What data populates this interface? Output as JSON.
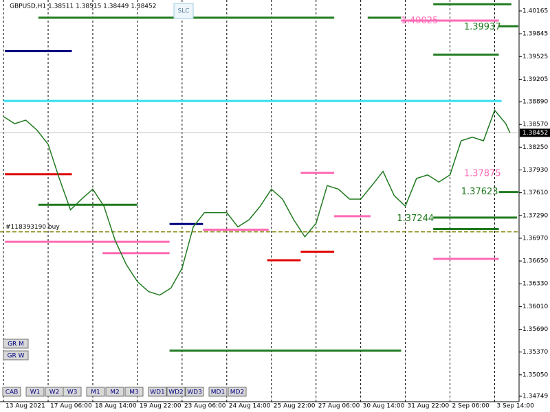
{
  "chart_data": {
    "type": "line",
    "title": "GBPUSD,H1  1.38511 1.38515 1.38449 1.38452",
    "xlim": [
      -2.5,
      369.5
    ],
    "ylim": [
      1.34672,
      1.40319
    ],
    "yticks": [
      1.40165,
      1.39845,
      1.39525,
      1.39205,
      {
        "value": 1.3889,
        "label": "1.38890"
      },
      {
        "value": 1.3857,
        "label": "1.38570"
      },
      {
        "value": 1.3825,
        "label": "1.38250"
      },
      {
        "value": 1.3793,
        "label": "1.37930"
      },
      {
        "value": 1.3761,
        "label": "1.37610"
      },
      {
        "value": 1.3729,
        "label": "1.37290"
      },
      {
        "value": 1.3697,
        "label": "1.36970"
      },
      {
        "value": 1.3665,
        "label": "1.36650"
      },
      {
        "value": 1.3633,
        "label": "1.36330"
      },
      {
        "value": 1.3601,
        "label": "1.36010"
      },
      {
        "value": 1.3569,
        "label": "1.35690"
      },
      {
        "value": 1.3537,
        "label": "1.35370"
      },
      {
        "value": 1.3505,
        "label": "1.35050"
      },
      1.34749
    ],
    "xticks": [
      {
        "value": 0,
        "label": "13 Aug 2021"
      },
      {
        "value": 32,
        "label": "17 Aug 06:00"
      },
      {
        "value": 64,
        "label": "18 Aug 14:00"
      },
      {
        "value": 96,
        "label": "19 Aug 22:00"
      },
      {
        "value": 128,
        "label": "23 Aug 06:00"
      },
      {
        "value": 160,
        "label": "24 Aug 14:00"
      },
      {
        "value": 192,
        "label": "25 Aug 22:00"
      },
      {
        "value": 224,
        "label": "27 Aug 06:00"
      },
      {
        "value": 256,
        "label": "30 Aug 14:00"
      },
      {
        "value": 288,
        "label": "31 Aug 22:00"
      },
      {
        "value": 320,
        "label": "2 Sep 06:00"
      },
      {
        "value": 352,
        "label": "3 Sep 14:00"
      }
    ],
    "grid": true,
    "series": [
      {
        "name": "GBPUSD",
        "color": "#1f7a1f",
        "x": [
          0,
          8,
          16,
          24,
          32,
          40,
          48,
          56,
          64,
          72,
          80,
          88,
          96,
          104,
          112,
          120,
          128,
          136,
          144,
          152,
          160,
          168,
          176,
          184,
          192,
          200,
          208,
          216,
          224,
          232,
          240,
          248,
          256,
          264,
          272,
          280,
          288,
          296,
          304,
          312,
          320,
          328,
          336,
          344,
          352,
          360,
          363
        ],
        "values": [
          1.3868,
          1.3858,
          1.3863,
          1.3849,
          1.3829,
          1.3781,
          1.3737,
          1.3752,
          1.3766,
          1.3742,
          1.3694,
          1.366,
          1.3636,
          1.3622,
          1.3617,
          1.3627,
          1.3655,
          1.3713,
          1.3733,
          1.3733,
          1.3733,
          1.3713,
          1.3723,
          1.3742,
          1.3766,
          1.3752,
          1.3723,
          1.3699,
          1.3718,
          1.3771,
          1.3766,
          1.3752,
          1.3752,
          1.3771,
          1.3791,
          1.3757,
          1.3742,
          1.3781,
          1.3786,
          1.3776,
          1.3786,
          1.3834,
          1.3839,
          1.3834,
          1.3877,
          1.3858,
          1.38452
        ]
      }
    ],
    "current_price": 1.38452,
    "levels": [
      {
        "price": 1.4026,
        "from": 308,
        "to": 364,
        "color": "#1f7a1f"
      },
      {
        "price": 1.4007,
        "from": 25,
        "to": 237,
        "color": "#1f7a1f"
      },
      {
        "price": 1.4007,
        "from": 261,
        "to": 285,
        "color": "#1f7a1f"
      },
      {
        "price": 1.4003,
        "from": 285,
        "to": 355,
        "color": "#ff69b4"
      },
      {
        "price": 1.3995,
        "from": 355,
        "to": 369,
        "color": "#1f7a1f"
      },
      {
        "price": 1.396,
        "from": 1,
        "to": 49,
        "color": "#00007f"
      },
      {
        "price": 1.3955,
        "from": 308,
        "to": 355,
        "color": "#1f7a1f"
      },
      {
        "price": 1.389,
        "from": 0,
        "to": 357,
        "color": "#33e0f0"
      },
      {
        "price": 1.3787,
        "from": 1,
        "to": 49,
        "color": "#e00000"
      },
      {
        "price": 1.3789,
        "from": 213,
        "to": 237,
        "color": "#ff69b4"
      },
      {
        "price": 1.3744,
        "from": 25,
        "to": 96,
        "color": "#1f7a1f"
      },
      {
        "price": 1.3762,
        "from": 355,
        "to": 369,
        "color": "#1f7a1f"
      },
      {
        "price": 1.3728,
        "from": 237,
        "to": 263,
        "color": "#ff69b4"
      },
      {
        "price": 1.3726,
        "from": 308,
        "to": 368,
        "color": "#1f7a1f"
      },
      {
        "price": 1.3717,
        "from": 119,
        "to": 143,
        "color": "#00007f"
      },
      {
        "price": 1.3709,
        "from": 143,
        "to": 190,
        "color": "#ff69b4"
      },
      {
        "price": 1.371,
        "from": 308,
        "to": 355,
        "color": "#1f7a1f"
      },
      {
        "price": 1.3692,
        "from": 1,
        "to": 119,
        "color": "#ff69b4"
      },
      {
        "price": 1.3676,
        "from": 71,
        "to": 119,
        "color": "#ff69b4"
      },
      {
        "price": 1.3678,
        "from": 213,
        "to": 237,
        "color": "#e00000"
      },
      {
        "price": 1.3668,
        "from": 308,
        "to": 355,
        "color": "#ff69b4"
      },
      {
        "price": 1.3666,
        "from": 189,
        "to": 213,
        "color": "#e00000"
      },
      {
        "price": 1.3539,
        "from": 119,
        "to": 285,
        "color": "#1f7a1f"
      }
    ],
    "order": {
      "price": 1.3706,
      "label": "#118393190 buy",
      "color": "#808000"
    },
    "level_labels": [
      {
        "text": "1.40025",
        "price": 1.40025,
        "bar": 285,
        "color": "#ff69b4"
      },
      {
        "text": "1.39937",
        "price": 1.39937,
        "bar": 330,
        "color": "#1f7a1f"
      },
      {
        "text": "1.37875",
        "price": 1.37875,
        "bar": 330,
        "color": "#ff69b4"
      },
      {
        "text": "1.37623",
        "price": 1.37623,
        "bar": 328,
        "color": "#1f7a1f"
      },
      {
        "text": "1.37244",
        "price": 1.37244,
        "bar": 282,
        "color": "#1f7a1f"
      }
    ],
    "top_button": "SLC",
    "side_buttons": [
      "GR M",
      "GR W"
    ],
    "bottom_buttons": [
      "CAB",
      "W1",
      "W2",
      "W3",
      "M1",
      "M2",
      "M3",
      "WD1",
      "WD2",
      "WD3",
      "MD1",
      "MD2"
    ]
  }
}
